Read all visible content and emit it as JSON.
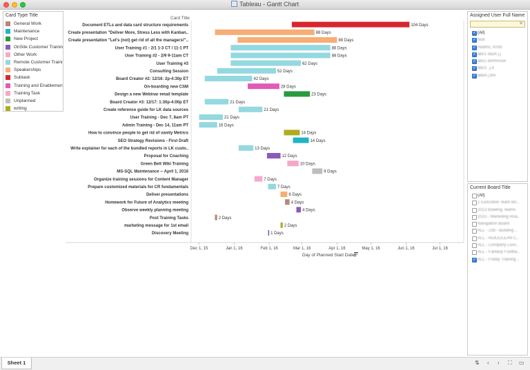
{
  "window": {
    "title": "Tableau - Gantt Chart"
  },
  "legend": {
    "title": "Card Type Title",
    "items": [
      {
        "label": "General Work",
        "color": "#b8877a"
      },
      {
        "label": "Maintenance",
        "color": "#1fb5c4"
      },
      {
        "label": "New Project",
        "color": "#2a9a3e"
      },
      {
        "label": "OnSite Customer Trainin..",
        "color": "#8a5cb8"
      },
      {
        "label": "Other Work",
        "color": "#f7a8cc"
      },
      {
        "label": "Remote Customer Traini..",
        "color": "#94d8e0"
      },
      {
        "label": "Speakerships",
        "color": "#f7ad74"
      },
      {
        "label": "Subtask",
        "color": "#d8262e"
      },
      {
        "label": "Training and Enablement",
        "color": "#e05bb3"
      },
      {
        "label": "Training Task",
        "color": "#f2a8c6"
      },
      {
        "label": "Unplanned",
        "color": "#bdbdbd"
      },
      {
        "label": "writing",
        "color": "#b0ac1e"
      }
    ]
  },
  "users_filter": {
    "title": "Assigned User Full Name",
    "search_placeholder": "",
    "items": [
      {
        "label": "(All)",
        "checked": true
      },
      {
        "label": "Null",
        "checked": true
      },
      {
        "label": "Adams, Kristi",
        "checked": true
      },
      {
        "label": "abc1 dash j.j",
        "checked": true
      },
      {
        "label": "abc2 ahrmnsse",
        "checked": true
      },
      {
        "label": "abc3 ..j.k",
        "checked": true
      },
      {
        "label": "abe4 j.bm",
        "checked": true
      }
    ]
  },
  "board_filter": {
    "title": "Current Board Title",
    "items": [
      {
        "label": "(All)",
        "checked": false
      },
      {
        "label": "1 Executive Team Bo..",
        "checked": false
      },
      {
        "label": "2013 Bowling Teams",
        "checked": false
      },
      {
        "label": "2015 - Marketing Roa..",
        "checked": false
      },
      {
        "label": "Navigation Board",
        "checked": false
      },
      {
        "label": "ALL - 238 - Building ..",
        "checked": false
      },
      {
        "label": "ALL - AGILE/LEAN C..",
        "checked": false
      },
      {
        "label": "ALL - Company Lunc..",
        "checked": false
      },
      {
        "label": "ALL - Fantasy Footba..",
        "checked": false
      },
      {
        "label": "ALL - Friday Training ..",
        "checked": true
      }
    ]
  },
  "bottom": {
    "sheet_tab": "Sheet 1"
  },
  "chart_data": {
    "type": "gantt",
    "title": "",
    "row_header": "Card Title",
    "xlabel": "Day of Planned Start Date",
    "x_ticks": [
      "Dec 1, 15",
      "Jan 1, 16",
      "Feb 1, 16",
      "Mar 1, 16",
      "Apr 1, 16",
      "May 1, 16",
      "Jun 1, 16",
      "Jul 1, 16"
    ],
    "x_tick_days": [
      0,
      31,
      62,
      91,
      122,
      152,
      183,
      213
    ],
    "xlim_days": [
      -7,
      234
    ],
    "rows": [
      {
        "task": "Document ETLs and data card structure requirements",
        "start_day": 82,
        "days": 104,
        "label": "104 Days",
        "type": "Subtask"
      },
      {
        "task": "Create presentation \"Deliver More, Stress Less with Kanban..",
        "start_day": 14,
        "days": 88,
        "label": "88 Days",
        "type": "Speakerships"
      },
      {
        "task": "Create presentation \"Let's (not) get rid of all the managers!\"..",
        "start_day": 34,
        "days": 88,
        "label": "88 Days",
        "type": "Speakerships"
      },
      {
        "task": "User Training #1 - 2/1 1-3 CT / 11-1 PT",
        "start_day": 28,
        "days": 88,
        "label": "88 Days",
        "type": "Remote Customer Training"
      },
      {
        "task": "User Training #2 - 2/9 9-11am CT",
        "start_day": 28,
        "days": 88,
        "label": "88 Days",
        "type": "Remote Customer Training"
      },
      {
        "task": "User Training #3",
        "start_day": 28,
        "days": 62,
        "label": "62 Days",
        "type": "Remote Customer Training"
      },
      {
        "task": "Consulting Session",
        "start_day": 16,
        "days": 52,
        "label": "52 Days",
        "type": "Remote Customer Training"
      },
      {
        "task": "Board Creator #2: 12/16: 2p-4:30p ET",
        "start_day": 5,
        "days": 42,
        "label": "42 Days",
        "type": "Remote Customer Training"
      },
      {
        "task": "On-boarding new CSM",
        "start_day": 43,
        "days": 28,
        "label": "28 Days",
        "type": "Training and Enablement"
      },
      {
        "task": "Design a new Webinar email template",
        "start_day": 75,
        "days": 23,
        "label": "23 Days",
        "type": "New Project"
      },
      {
        "task": "Board Creator #3: 12/17: 1:30p-4:00p ET",
        "start_day": 5,
        "days": 21,
        "label": "21 Days",
        "type": "Remote Customer Training"
      },
      {
        "task": "Create reference guide for LK data sources",
        "start_day": 35,
        "days": 21,
        "label": "21 Days",
        "type": "Remote Customer Training"
      },
      {
        "task": "User Training - Dec 7, 8am PT",
        "start_day": 0,
        "days": 21,
        "label": "21 Days",
        "type": "Remote Customer Training"
      },
      {
        "task": "Admin Training - Dec 14, 11am PT",
        "start_day": 0,
        "days": 16,
        "label": "16 Days",
        "type": "Remote Customer Training"
      },
      {
        "task": "How to convince people to get rid of vanity Metrics",
        "start_day": 75,
        "days": 14,
        "label": "14 Days",
        "type": "writing"
      },
      {
        "task": "SEO Strategy Revisions - First Draft",
        "start_day": 83,
        "days": 14,
        "label": "14 Days",
        "type": "Maintenance"
      },
      {
        "task": "Write explainer for each of the bundled reports in LK custo..",
        "start_day": 35,
        "days": 13,
        "label": "13 Days",
        "type": "Remote Customer Training"
      },
      {
        "task": "Proposal for Coaching",
        "start_day": 60,
        "days": 12,
        "label": "12 Days",
        "type": "OnSite Customer Training"
      },
      {
        "task": "Green Belt Wiki Training",
        "start_day": 78,
        "days": 10,
        "label": "10 Days",
        "type": "Training Task"
      },
      {
        "task": "MS-SQL Maintenance -- April 1, 2016",
        "start_day": 100,
        "days": 9,
        "label": "9 Days",
        "type": "Unplanned"
      },
      {
        "task": "Organize training sessions for Content Manager",
        "start_day": 49,
        "days": 7,
        "label": "7 Days",
        "type": "Other Work"
      },
      {
        "task": "Prepare customized materials for CR fundamentals",
        "start_day": 61,
        "days": 7,
        "label": "7 Days",
        "type": "Remote Customer Training"
      },
      {
        "task": "Deliver presentations",
        "start_day": 72,
        "days": 6,
        "label": "6 Days",
        "type": "Speakerships"
      },
      {
        "task": "Homework for Future of Analytics meeting",
        "start_day": 76,
        "days": 4,
        "label": "4 Days",
        "type": "General Work"
      },
      {
        "task": "Observe weekly planning meeting",
        "start_day": 86,
        "days": 4,
        "label": "4 Days",
        "type": "OnSite Customer Training"
      },
      {
        "task": "Post Training Tasks",
        "start_day": 14,
        "days": 2,
        "label": "2 Days",
        "type": "General Work"
      },
      {
        "task": "marketing message for 1st email",
        "start_day": 72,
        "days": 2,
        "label": "2 Days",
        "type": "writing"
      },
      {
        "task": "Discovery Meeting",
        "start_day": 61,
        "days": 1,
        "label": "1 Days",
        "type": "OnSite Customer Training"
      }
    ]
  }
}
